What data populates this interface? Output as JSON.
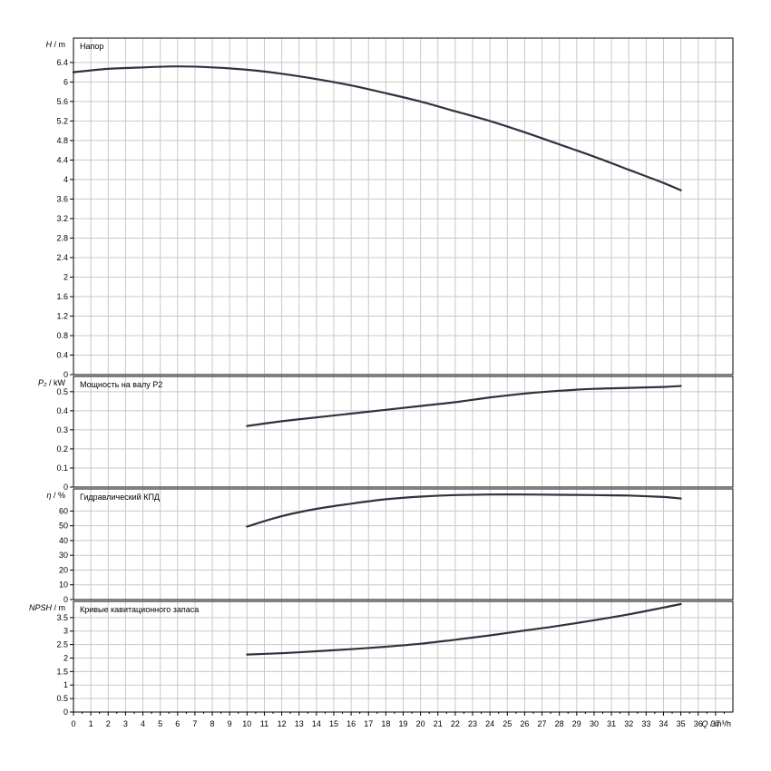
{
  "chart_data": {
    "type": "line",
    "x_axis": {
      "label": "Q",
      "unit": "m³/h",
      "range": [
        0,
        38
      ],
      "ticks": [
        0,
        1,
        2,
        3,
        4,
        5,
        6,
        7,
        8,
        9,
        10,
        11,
        12,
        13,
        14,
        15,
        16,
        17,
        18,
        19,
        20,
        21,
        22,
        23,
        24,
        25,
        26,
        27,
        28,
        29,
        30,
        31,
        32,
        33,
        34,
        35,
        36,
        37
      ]
    },
    "grid": true,
    "panels": [
      {
        "id": "head",
        "title": "Напор",
        "ylabel": "H",
        "yunit": "m",
        "ylim": [
          0,
          6.9
        ],
        "yticks": [
          "0",
          "0.4",
          "0.8",
          "1.2",
          "1.6",
          "2",
          "2.4",
          "2.8",
          "3.2",
          "3.6",
          "4",
          "4.4",
          "4.8",
          "5.2",
          "5.6",
          "6",
          "6.4"
        ],
        "series": [
          {
            "x": [
              0,
              2,
              4,
              6,
              8,
              10,
              12,
              14,
              16,
              18,
              20,
              22,
              24,
              26,
              28,
              30,
              32,
              34,
              35
            ],
            "y": [
              6.2,
              6.27,
              6.3,
              6.32,
              6.3,
              6.25,
              6.17,
              6.06,
              5.93,
              5.77,
              5.6,
              5.4,
              5.2,
              4.97,
              4.72,
              4.47,
              4.2,
              3.93,
              3.78
            ]
          }
        ]
      },
      {
        "id": "power",
        "title": "Мощность на валу P2",
        "ylabel": "P₂",
        "yunit": "kW",
        "ylim": [
          0,
          0.58
        ],
        "yticks": [
          "0",
          "0.1",
          "0.2",
          "0.3",
          "0.4",
          "0.5"
        ],
        "series": [
          {
            "x": [
              10,
              12,
              14,
              16,
              18,
              20,
              22,
              24,
              26,
              28,
              30,
              32,
              34,
              35
            ],
            "y": [
              0.32,
              0.345,
              0.365,
              0.385,
              0.405,
              0.425,
              0.445,
              0.47,
              0.49,
              0.505,
              0.515,
              0.52,
              0.525,
              0.53
            ]
          }
        ]
      },
      {
        "id": "efficiency",
        "title": "Гидравлический КПД",
        "ylabel": "η",
        "yunit": "%",
        "ylim": [
          0,
          75
        ],
        "yticks": [
          "0",
          "10",
          "20",
          "30",
          "40",
          "50",
          "60"
        ],
        "series": [
          {
            "x": [
              10,
              12,
              14,
              16,
              18,
              20,
              22,
              24,
              26,
              28,
              30,
              32,
              34,
              35
            ],
            "y": [
              49.5,
              56.5,
              61.5,
              65,
              68,
              69.8,
              70.8,
              71.2,
              71.2,
              71,
              70.8,
              70.5,
              69.5,
              68.5
            ]
          }
        ]
      },
      {
        "id": "npsh",
        "title": "Кривые кавитационного запаса",
        "ylabel": "NPSH",
        "yunit": "m",
        "ylim": [
          0,
          4.1
        ],
        "yticks": [
          "0",
          "0.5",
          "1",
          "1.5",
          "2",
          "2.5",
          "3",
          "3.5"
        ],
        "series": [
          {
            "x": [
              10,
              12,
              14,
              16,
              18,
              20,
              22,
              24,
              26,
              28,
              30,
              32,
              34,
              35
            ],
            "y": [
              2.13,
              2.18,
              2.25,
              2.33,
              2.42,
              2.53,
              2.68,
              2.84,
              3.02,
              3.2,
              3.4,
              3.62,
              3.87,
              4.0
            ]
          }
        ]
      }
    ]
  }
}
